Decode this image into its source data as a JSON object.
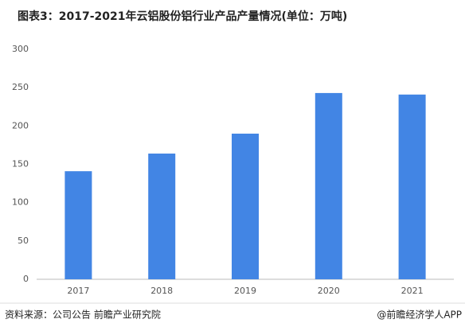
{
  "chart_data": {
    "type": "bar",
    "title": "图表3：2017-2021年云铝股份铝行业产品产量情况(单位：万吨)",
    "categories": [
      "2017",
      "2018",
      "2019",
      "2020",
      "2021"
    ],
    "values": [
      141,
      164,
      190,
      243,
      241
    ],
    "color": "#4285e4",
    "ylim": [
      0,
      300
    ],
    "yticks": [
      0,
      50,
      100,
      150,
      200,
      250,
      300
    ],
    "grid": false,
    "source": "资料来源：公司公告 前瞻产业研究院",
    "credit": "@前瞻经济学人APP"
  }
}
